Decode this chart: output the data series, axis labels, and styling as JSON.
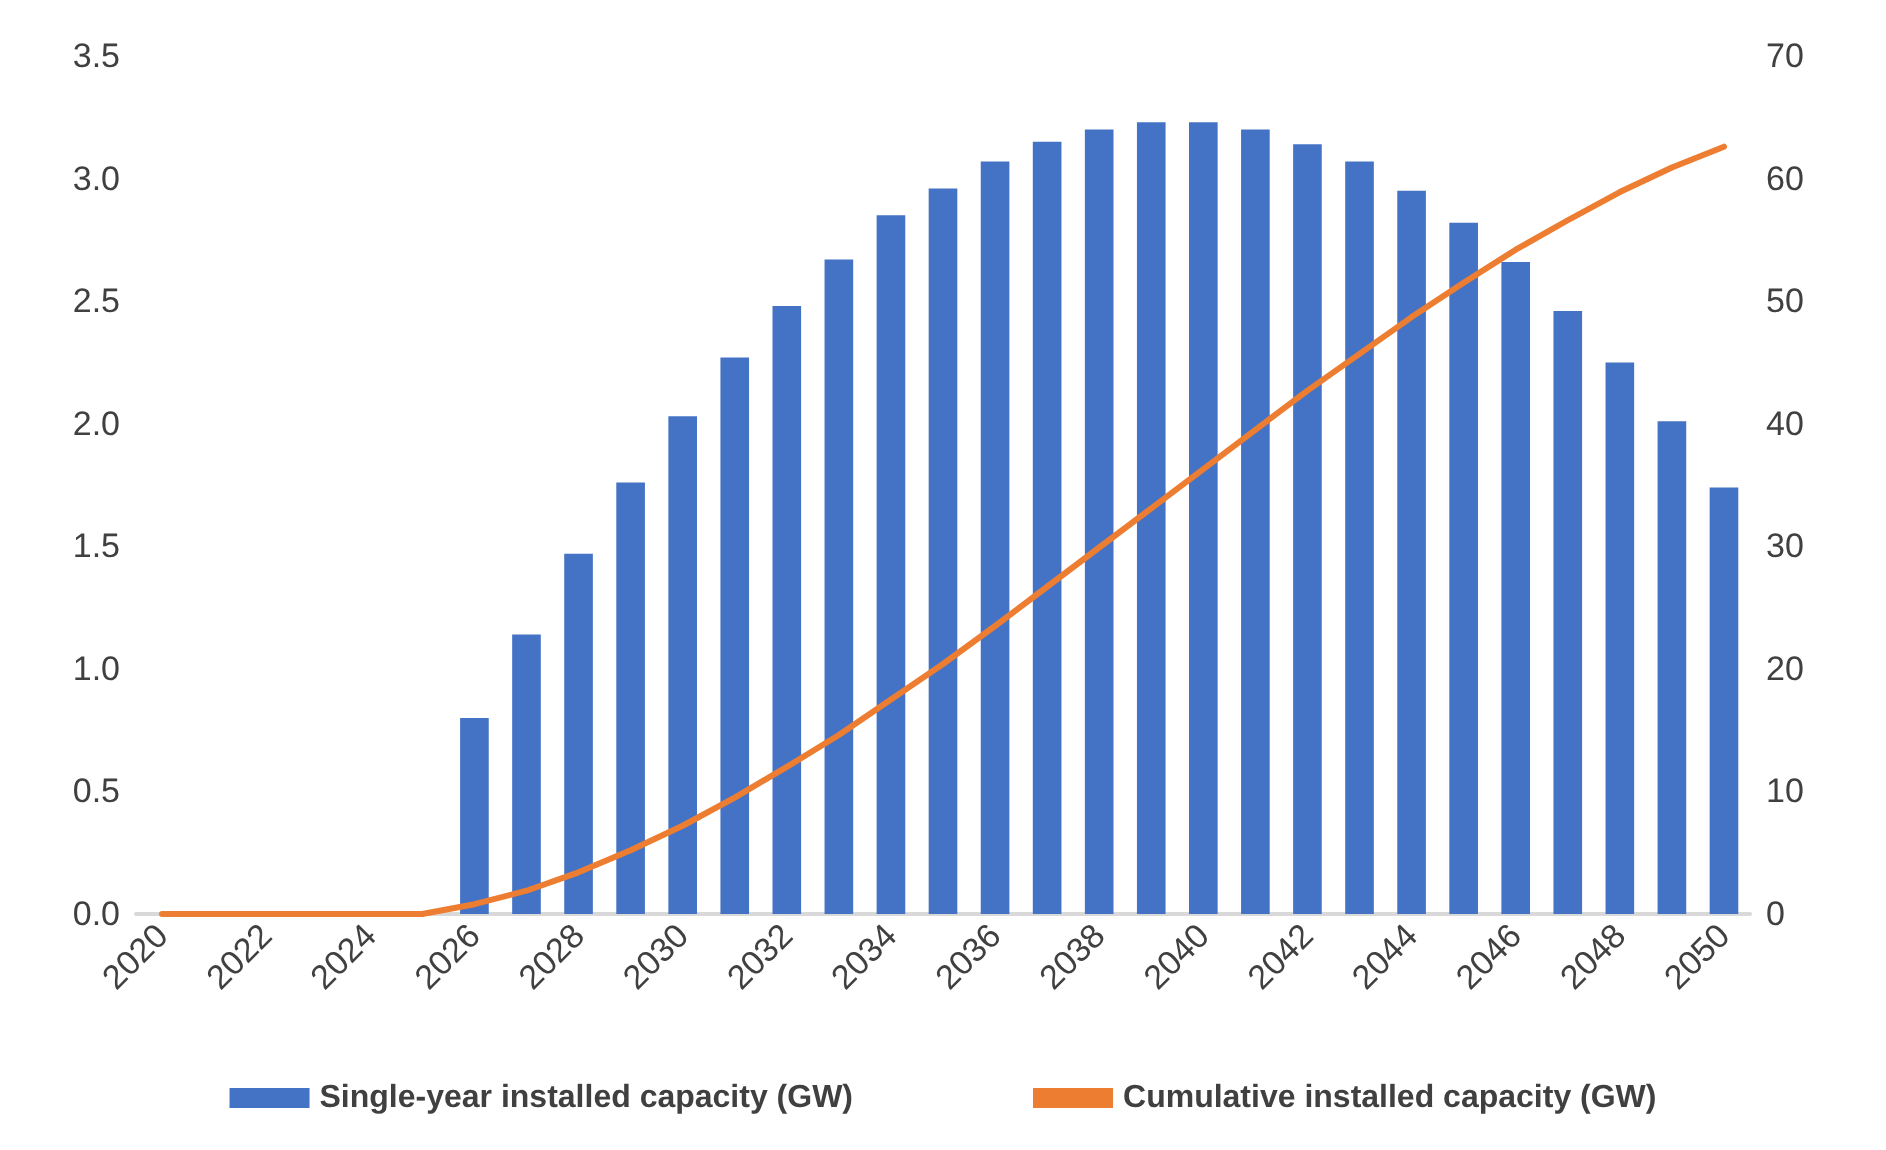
{
  "chart_data": {
    "type": "bar",
    "categories": [
      "2020",
      null,
      "2022",
      null,
      "2024",
      null,
      "2026",
      null,
      "2028",
      null,
      "2030",
      null,
      "2032",
      null,
      "2034",
      null,
      "2036",
      null,
      "2038",
      null,
      "2040",
      null,
      "2042",
      null,
      "2044",
      null,
      "2046",
      null,
      "2048",
      null,
      "2050"
    ],
    "series": [
      {
        "name": "Single-year installed capacity (GW)",
        "color": "#4472c4",
        "values": [
          null,
          null,
          null,
          null,
          null,
          null,
          0.8,
          1.14,
          1.47,
          1.76,
          2.03,
          2.27,
          2.48,
          2.67,
          2.85,
          2.96,
          3.07,
          3.15,
          3.2,
          3.23,
          3.23,
          3.2,
          3.14,
          3.07,
          2.95,
          2.82,
          2.66,
          2.46,
          2.25,
          2.01,
          1.74
        ]
      },
      {
        "name": "Cumulative installed capacity (GW)",
        "type": "line",
        "axis": "y2",
        "color": "#ed7d31",
        "values": [
          0,
          0,
          0,
          0,
          0,
          0,
          0.8,
          1.9,
          3.4,
          5.2,
          7.2,
          9.5,
          12.0,
          14.6,
          17.5,
          20.4,
          23.5,
          26.7,
          29.9,
          33.1,
          36.3,
          39.5,
          42.7,
          45.7,
          48.7,
          51.5,
          54.2,
          56.6,
          58.9,
          60.9,
          62.6
        ]
      }
    ],
    "ylim": [
      0,
      3.5
    ],
    "yticks": [
      {
        "value": 0,
        "label": "0.0"
      },
      0.5,
      {
        "value": 1,
        "label": "1.0"
      },
      1.5,
      {
        "value": 2,
        "label": "2.0"
      },
      2.5,
      {
        "value": 3,
        "label": "3.0"
      },
      3.5
    ],
    "y2lim": [
      0,
      70
    ],
    "y2ticks": [
      0,
      10,
      20,
      30,
      40,
      50,
      60,
      70
    ],
    "grid": false,
    "legend": "bottom",
    "marker": "none",
    "line_style": "solid"
  }
}
